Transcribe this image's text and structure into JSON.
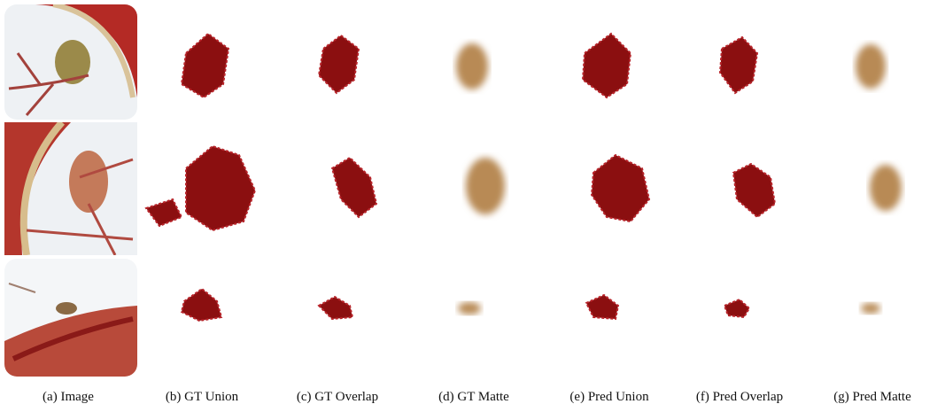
{
  "captions": [
    "(a) Image",
    "(b) GT Union",
    "(c) GT Overlap",
    "(d) GT Matte",
    "(e) Pred Union",
    "(f) Pred Overlap",
    "(g) Pred Matte"
  ]
}
